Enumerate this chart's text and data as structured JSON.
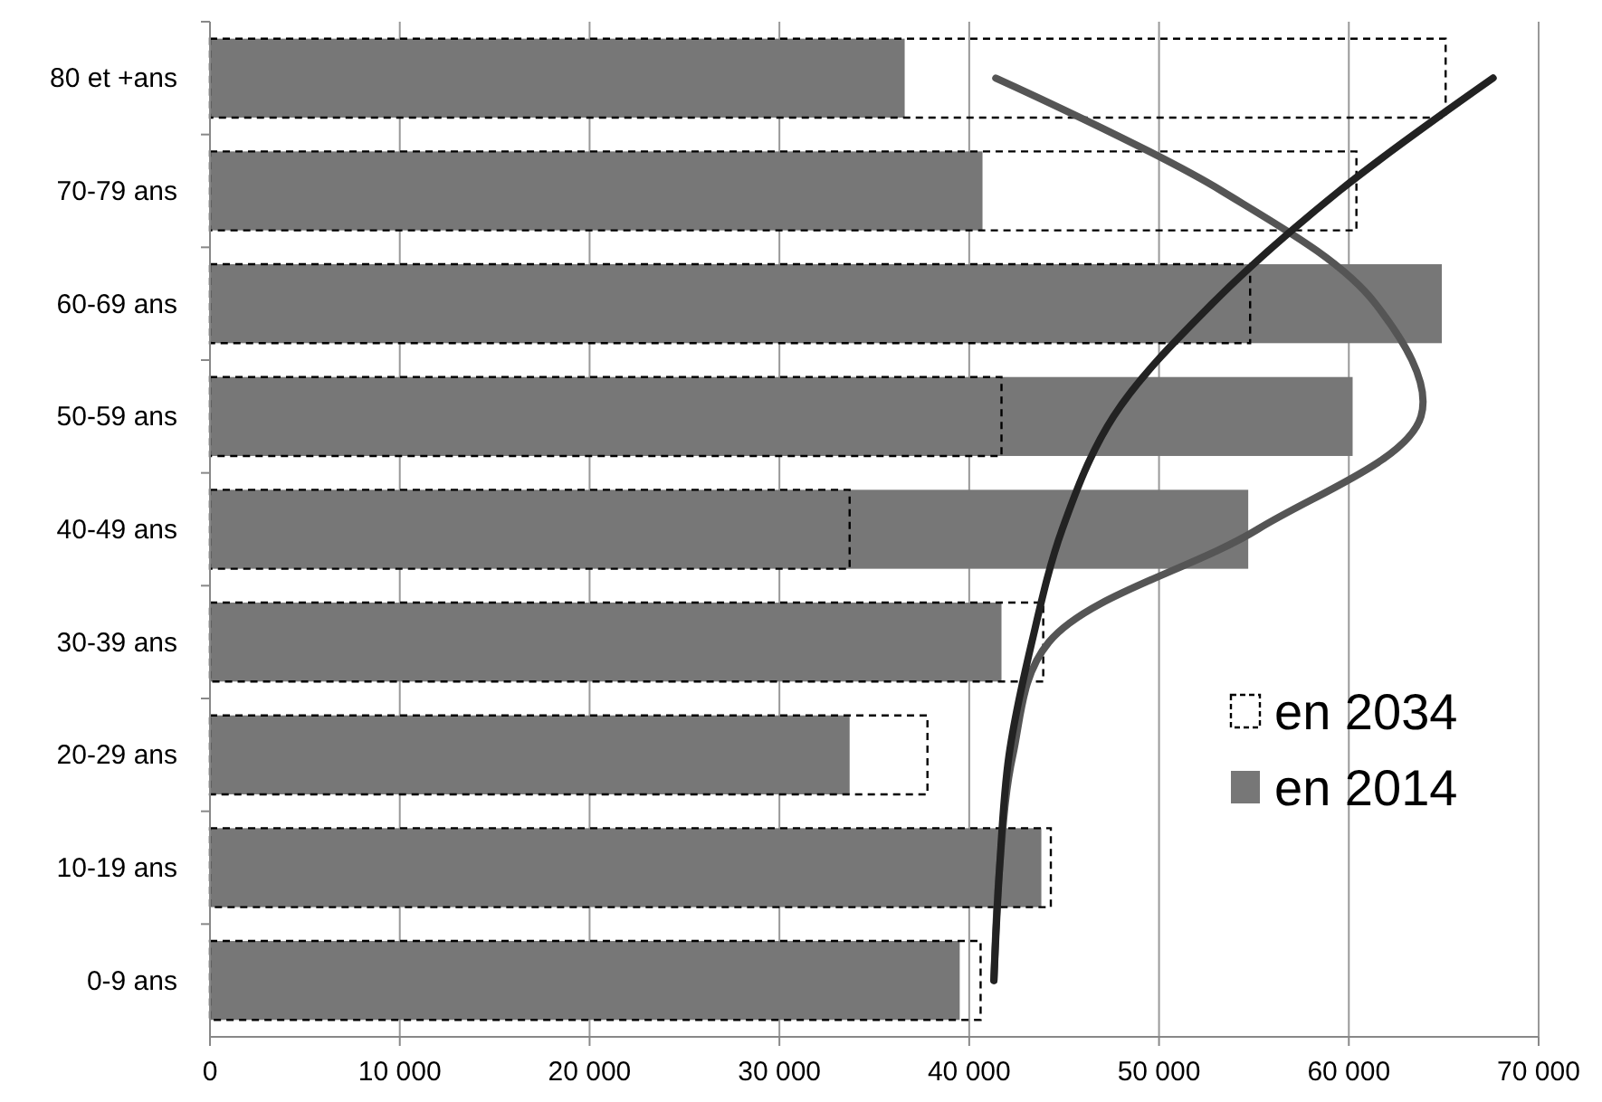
{
  "chart_data": {
    "type": "bar",
    "orientation": "horizontal",
    "categories": [
      "80 et +ans",
      "70-79 ans",
      "60-69 ans",
      "50-59 ans",
      "40-49 ans",
      "30-39 ans",
      "20-29 ans",
      "10-19 ans",
      "0-9 ans"
    ],
    "series": [
      {
        "name": "en 2014",
        "color": "#777777",
        "values": [
          36600,
          40700,
          64900,
          60200,
          54700,
          41700,
          33700,
          43800,
          39500
        ]
      },
      {
        "name": "en 2034",
        "color": "#000000",
        "line_style": "dashed",
        "values": [
          65100,
          60400,
          54800,
          41700,
          33700,
          43900,
          37800,
          44300,
          40600
        ]
      },
      {
        "type": "line",
        "color": "#555555",
        "values": [
          41400,
          53300,
          61400,
          63800,
          55200,
          44200,
          42300,
          41600,
          41300
        ]
      },
      {
        "type": "line",
        "color": "#222222",
        "values": [
          67600,
          59500,
          52800,
          47600,
          44900,
          43300,
          42100,
          41600,
          41300
        ]
      }
    ],
    "xlim": [
      0,
      70000
    ],
    "xticks": [
      0,
      {
        "value": 10000,
        "label": "10 000"
      },
      {
        "value": 20000,
        "label": "20 000"
      },
      {
        "value": 30000,
        "label": "30 000"
      },
      {
        "value": 40000,
        "label": "40 000"
      },
      {
        "value": 50000,
        "label": "50 000"
      },
      {
        "value": 60000,
        "label": "60 000"
      },
      {
        "value": 70000,
        "label": "70 000"
      }
    ],
    "grid": "x",
    "legend": "bottom right"
  }
}
